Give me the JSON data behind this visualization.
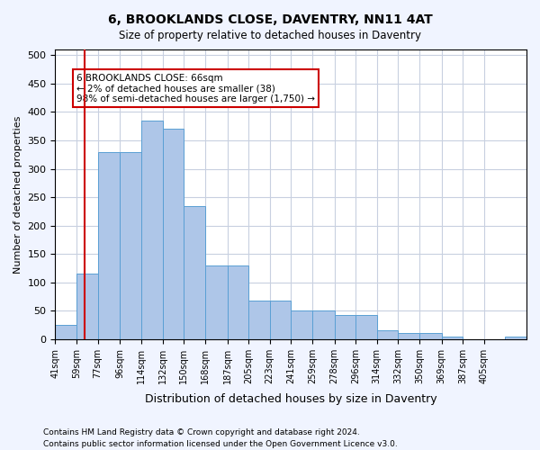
{
  "title1": "6, BROOKLANDS CLOSE, DAVENTRY, NN11 4AT",
  "title2": "Size of property relative to detached houses in Daventry",
  "xlabel": "Distribution of detached houses by size in Daventry",
  "ylabel": "Number of detached properties",
  "bar_values": [
    25,
    115,
    330,
    330,
    385,
    370,
    235,
    130,
    130,
    68,
    68,
    50,
    50,
    42,
    42,
    15,
    10,
    10,
    5,
    0,
    0,
    5
  ],
  "bin_edges": [
    41,
    59,
    77,
    96,
    114,
    132,
    150,
    168,
    187,
    205,
    223,
    241,
    259,
    278,
    296,
    314,
    332,
    350,
    369,
    387,
    405,
    423,
    441
  ],
  "tick_labels": [
    "41sqm",
    "59sqm",
    "77sqm",
    "96sqm",
    "114sqm",
    "132sqm",
    "150sqm",
    "168sqm",
    "187sqm",
    "205sqm",
    "223sqm",
    "241sqm",
    "259sqm",
    "278sqm",
    "296sqm",
    "314sqm",
    "332sqm",
    "350sqm",
    "369sqm",
    "387sqm",
    "405sqm"
  ],
  "bar_color": "#aec6e8",
  "bar_edge_color": "#5a9fd4",
  "property_line_x": 66,
  "property_line_color": "#cc0000",
  "annotation_text": "6 BROOKLANDS CLOSE: 66sqm\n← 2% of detached houses are smaller (38)\n98% of semi-detached houses are larger (1,750) →",
  "annotation_box_color": "#cc0000",
  "ylim": [
    0,
    510
  ],
  "yticks": [
    0,
    50,
    100,
    150,
    200,
    250,
    300,
    350,
    400,
    450,
    500
  ],
  "footnote1": "Contains HM Land Registry data © Crown copyright and database right 2024.",
  "footnote2": "Contains public sector information licensed under the Open Government Licence v3.0.",
  "bg_color": "#f0f4ff",
  "plot_bg_color": "#ffffff",
  "grid_color": "#c8d0e0"
}
